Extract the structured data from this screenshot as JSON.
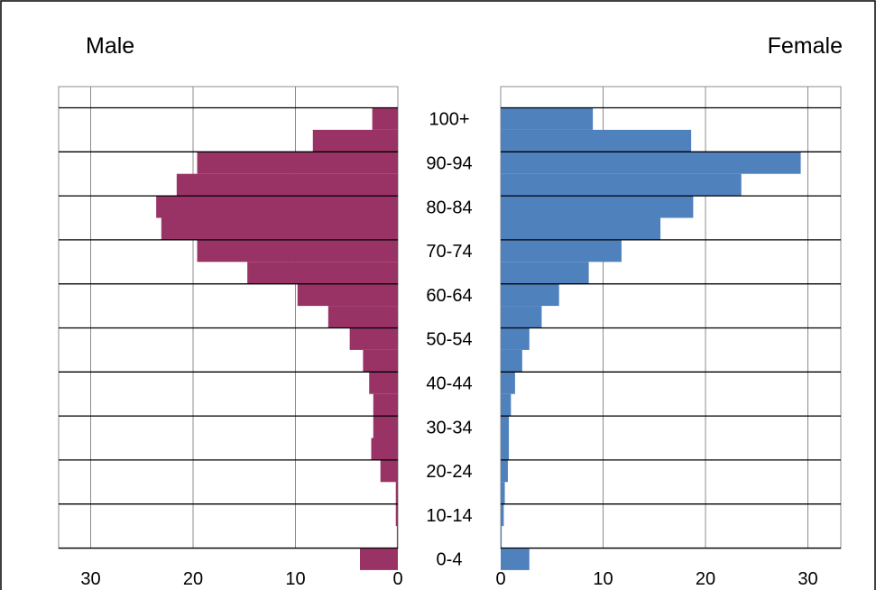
{
  "chart_data": {
    "type": "bar",
    "orientation": "horizontal",
    "layout": "population-pyramid",
    "age_groups": [
      "0-4",
      "5-9",
      "10-14",
      "15-19",
      "20-24",
      "25-29",
      "30-34",
      "35-39",
      "40-44",
      "45-49",
      "50-54",
      "55-59",
      "60-64",
      "65-69",
      "70-74",
      "75-79",
      "80-84",
      "85-89",
      "90-94",
      "95-99",
      "100+"
    ],
    "age_tick_labels": [
      "100+",
      "90-94",
      "80-84",
      "70-74",
      "60-64",
      "50-54",
      "40-44",
      "30-34",
      "20-24",
      "10-14",
      "0-4"
    ],
    "series": [
      {
        "name": "Male",
        "color": "#993366",
        "values": [
          3.7,
          0.1,
          0.2,
          0.2,
          1.7,
          2.6,
          2.4,
          2.4,
          2.8,
          3.4,
          4.7,
          6.8,
          9.8,
          14.7,
          19.6,
          23.1,
          23.6,
          21.6,
          19.6,
          8.3,
          2.5
        ]
      },
      {
        "name": "Female",
        "color": "#4f81bd",
        "values": [
          2.8,
          0.1,
          0.3,
          0.4,
          0.7,
          0.8,
          0.8,
          1.0,
          1.4,
          2.1,
          2.8,
          4.0,
          5.7,
          8.6,
          11.8,
          15.6,
          18.8,
          23.5,
          29.3,
          18.6,
          9.0
        ]
      }
    ],
    "male_axis": {
      "ticks": [
        30,
        20,
        10,
        0
      ],
      "range": [
        0,
        33.5
      ]
    },
    "female_axis": {
      "ticks": [
        0,
        10,
        20,
        30
      ],
      "range": [
        0,
        33.5
      ]
    },
    "grid": true
  },
  "labels": {
    "male": "Male",
    "female": "Female"
  }
}
